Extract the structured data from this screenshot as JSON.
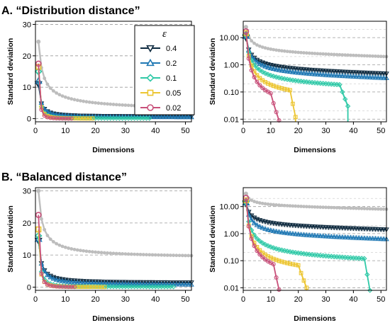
{
  "sections": [
    {
      "id": "A",
      "title": "A. “Distribution distance”"
    },
    {
      "id": "B",
      "title": "B. “Balanced distance”"
    }
  ],
  "colors": {
    "eps_0.4": "#0e2a3f",
    "eps_0.2": "#1f78b4",
    "eps_0.1": "#2fc9a7",
    "eps_0.05": "#ecc531",
    "eps_0.02": "#c8507a",
    "reference": "#bdbdbd"
  },
  "legend": {
    "title": "ε",
    "placement": "top-center of panel A-left",
    "entries": [
      {
        "label": "0.4",
        "marker": "triangle-down",
        "color_key": "eps_0.4"
      },
      {
        "label": "0.2",
        "marker": "triangle-up",
        "color_key": "eps_0.2"
      },
      {
        "label": "0.1",
        "marker": "diamond",
        "color_key": "eps_0.1"
      },
      {
        "label": "0.05",
        "marker": "square",
        "color_key": "eps_0.05"
      },
      {
        "label": "0.02",
        "marker": "circle",
        "color_key": "eps_0.02"
      }
    ]
  },
  "chart_data": [
    {
      "id": "A-linear",
      "section": "A",
      "type": "line",
      "yscale": "linear",
      "xlabel": "Dimensions",
      "ylabel": "Standard deviation",
      "xlim": [
        0,
        52
      ],
      "ylim": [
        -1,
        31
      ],
      "xticks": [
        0,
        10,
        20,
        30,
        40,
        50
      ],
      "yticks": [
        0,
        10,
        20,
        30
      ],
      "ytick_labels": [
        "0",
        "10",
        "20",
        "30"
      ],
      "grid": "horizontal dashed at y ticks",
      "series": [
        {
          "color_key": "reference",
          "marker": "circle",
          "start": 24.5,
          "floor": 1.9,
          "decay": 0.3,
          "end": 52
        },
        {
          "color_key": "eps_0.4",
          "marker": "triangle-down",
          "start": 11.0,
          "floor": 0.7,
          "decay": 0.6,
          "end": 52
        },
        {
          "color_key": "eps_0.2",
          "marker": "triangle-up",
          "start": 12.0,
          "floor": 0.4,
          "decay": 0.6,
          "end": 52
        },
        {
          "color_key": "eps_0.1",
          "marker": "diamond",
          "start": 15.0,
          "floor": 0.12,
          "decay": 0.9,
          "end": 38
        },
        {
          "color_key": "eps_0.05",
          "marker": "square",
          "start": 16.5,
          "floor": 0.04,
          "decay": 1.0,
          "end": 19
        },
        {
          "color_key": "eps_0.02",
          "marker": "circle",
          "start": 17.5,
          "floor": 0.02,
          "decay": 1.2,
          "end": 12
        }
      ]
    },
    {
      "id": "A-log",
      "section": "A",
      "type": "line",
      "yscale": "log",
      "xlabel": "Dimensions",
      "ylabel": "Standard deviation",
      "xlim": [
        0,
        52
      ],
      "ylim": [
        0.008,
        40
      ],
      "xticks": [
        0,
        10,
        20,
        30,
        40,
        50
      ],
      "yticks": [
        0.01,
        0.1,
        1,
        10
      ],
      "ytick_labels": [
        "0.01",
        "0.10",
        "1.00",
        "10.00"
      ],
      "grid": "horizontal dashed at y ticks",
      "series": [
        {
          "color_key": "reference",
          "marker": "circle",
          "start": 24.5,
          "floor": 1.9,
          "decay": 0.3,
          "end": 52
        },
        {
          "color_key": "eps_0.4",
          "marker": "triangle-down",
          "start": 10.0,
          "floor": 0.42,
          "decay": 0.35,
          "end": 52
        },
        {
          "color_key": "eps_0.2",
          "marker": "triangle-up",
          "start": 11.5,
          "floor": 0.27,
          "decay": 0.35,
          "end": 52
        },
        {
          "color_key": "eps_0.1",
          "marker": "diamond",
          "start": 13.0,
          "floor": 0.11,
          "decay": 0.35,
          "end": 38,
          "drop_from": 35,
          "drop_to": 0.03
        },
        {
          "color_key": "eps_0.05",
          "marker": "square",
          "start": 14.5,
          "floor": 0.035,
          "decay": 0.35,
          "end": 19,
          "drop_from": 17,
          "drop_to": 0.012
        },
        {
          "color_key": "eps_0.02",
          "marker": "circle",
          "start": 17.0,
          "floor": 0.012,
          "decay": 0.45,
          "end": 13,
          "drop_from": 10,
          "drop_to": 0.009
        }
      ]
    },
    {
      "id": "B-linear",
      "section": "B",
      "type": "line",
      "yscale": "linear",
      "xlabel": "Dimensions",
      "ylabel": "Standard deviation",
      "xlim": [
        0,
        52
      ],
      "ylim": [
        -1,
        31
      ],
      "xticks": [
        0,
        10,
        20,
        30,
        40,
        50
      ],
      "yticks": [
        0,
        10,
        20,
        30
      ],
      "ytick_labels": [
        "0",
        "10",
        "20",
        "30"
      ],
      "grid": "horizontal dashed at y ticks",
      "series": [
        {
          "color_key": "reference",
          "marker": "circle",
          "start": 30.0,
          "floor": 8.8,
          "decay": 0.35,
          "end": 52
        },
        {
          "color_key": "eps_0.4",
          "marker": "triangle-down",
          "start": 14.5,
          "floor": 1.3,
          "decay": 0.5,
          "end": 52
        },
        {
          "color_key": "eps_0.2",
          "marker": "triangle-up",
          "start": 15.0,
          "floor": 0.6,
          "decay": 0.5,
          "end": 52
        },
        {
          "color_key": "eps_0.1",
          "marker": "diamond",
          "start": 16.0,
          "floor": 0.1,
          "decay": 0.8,
          "end": 46
        },
        {
          "color_key": "eps_0.05",
          "marker": "square",
          "start": 18.0,
          "floor": 0.04,
          "decay": 1.0,
          "end": 23
        },
        {
          "color_key": "eps_0.02",
          "marker": "circle",
          "start": 22.5,
          "floor": 0.02,
          "decay": 1.1,
          "end": 13
        }
      ]
    },
    {
      "id": "B-log",
      "section": "B",
      "type": "line",
      "yscale": "log",
      "xlabel": "Dimensions",
      "ylabel": "Standard deviation",
      "xlim": [
        0,
        52
      ],
      "ylim": [
        0.008,
        50
      ],
      "xticks": [
        0,
        10,
        20,
        30,
        40,
        50
      ],
      "yticks": [
        0.01,
        0.1,
        1,
        10
      ],
      "ytick_labels": [
        "0.01",
        "0.10",
        "1.00",
        "10.00"
      ],
      "grid": "horizontal dashed at y ticks",
      "series": [
        {
          "color_key": "reference",
          "marker": "circle",
          "start": 30.0,
          "floor": 8.8,
          "decay": 0.35,
          "end": 52
        },
        {
          "color_key": "eps_0.4",
          "marker": "triangle-down",
          "start": 13.0,
          "floor": 1.4,
          "decay": 0.3,
          "end": 52
        },
        {
          "color_key": "eps_0.2",
          "marker": "triangle-up",
          "start": 14.0,
          "floor": 0.55,
          "decay": 0.3,
          "end": 52
        },
        {
          "color_key": "eps_0.1",
          "marker": "diamond",
          "start": 15.0,
          "floor": 0.075,
          "decay": 0.25,
          "end": 46,
          "drop_from": 44,
          "drop_to": 0.008
        },
        {
          "color_key": "eps_0.05",
          "marker": "square",
          "start": 17.0,
          "floor": 0.02,
          "decay": 0.3,
          "end": 23,
          "drop_from": 20,
          "drop_to": 0.01
        },
        {
          "color_key": "eps_0.02",
          "marker": "circle",
          "start": 21.0,
          "floor": 0.01,
          "decay": 0.4,
          "end": 13,
          "drop_from": 11,
          "drop_to": 0.0085
        }
      ]
    }
  ]
}
